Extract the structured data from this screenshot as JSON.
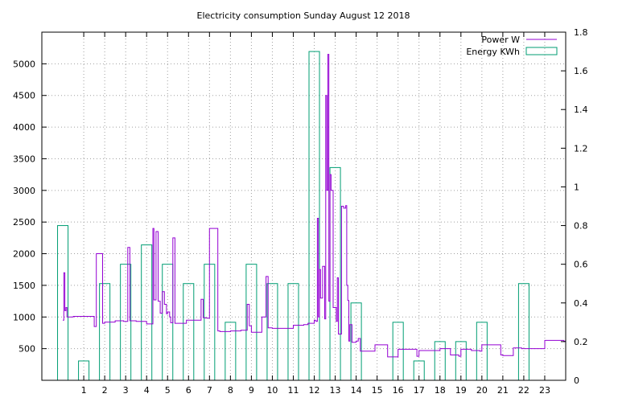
{
  "chart_data": {
    "type": "bar",
    "title": "Electricity consumption Sunday August 12 2018",
    "xlabel": "",
    "ylabel": "",
    "y2label": "",
    "xlim": [
      -1,
      24
    ],
    "x_ticks": [
      1,
      2,
      3,
      4,
      5,
      6,
      7,
      8,
      9,
      10,
      11,
      12,
      13,
      14,
      15,
      16,
      17,
      18,
      19,
      20,
      21,
      22,
      23
    ],
    "ylim": [
      0,
      5500
    ],
    "y_ticks": [
      500,
      1000,
      1500,
      2000,
      2500,
      3000,
      3500,
      4000,
      4500,
      5000
    ],
    "y2lim": [
      0,
      1.8
    ],
    "y2_ticks": [
      "0",
      "0.2",
      "0.4",
      "0.6",
      "0.8",
      "1",
      "1.2",
      "1.4",
      "1.6",
      "1.8"
    ],
    "grid": true,
    "legend_position": "top-right",
    "colors": {
      "power": "#9400d3",
      "energy": "#009e73"
    },
    "series": [
      {
        "name": "Power W",
        "type": "line",
        "axis": "left",
        "x": [
          0,
          0.05,
          0.1,
          0.15,
          0.2,
          0.3,
          0.4,
          0.5,
          1.0,
          1.4,
          1.5,
          1.6,
          1.9,
          2.0,
          2.5,
          2.9,
          3.1,
          3.2,
          3.5,
          4.0,
          4.3,
          4.35,
          4.45,
          4.55,
          4.65,
          4.75,
          4.85,
          4.95,
          5.0,
          5.1,
          5.15,
          5.25,
          5.35,
          5.5,
          5.9,
          6.0,
          6.5,
          6.6,
          6.7,
          6.8,
          6.9,
          7.0,
          7.4,
          7.5,
          8.0,
          8.5,
          8.8,
          8.9,
          9.0,
          9.2,
          9.5,
          9.7,
          9.8,
          10.0,
          10.5,
          10.7,
          11.0,
          11.5,
          11.7,
          12.0,
          12.05,
          12.1,
          12.15,
          12.2,
          12.25,
          12.3,
          12.4,
          12.5,
          12.55,
          12.6,
          12.65,
          12.7,
          12.75,
          12.8,
          12.9,
          13.0,
          13.05,
          13.1,
          13.15,
          13.2,
          13.3,
          13.4,
          13.5,
          13.55,
          13.6,
          13.65,
          13.7,
          13.8,
          14.0,
          14.1,
          14.2,
          14.5,
          14.9,
          15.0,
          15.5,
          15.9,
          16.0,
          16.5,
          16.9,
          17.0,
          17.5,
          17.9,
          18.0,
          18.5,
          18.9,
          19.0,
          19.5,
          19.9,
          20.0,
          20.5,
          20.9,
          21.0,
          21.5,
          21.9,
          22.0,
          22.5,
          22.9,
          23.0,
          23.5,
          23.9
        ],
        "values": [
          950,
          1700,
          1100,
          1150,
          1000,
          1000,
          1000,
          1010,
          1010,
          1010,
          850,
          2000,
          900,
          920,
          940,
          930,
          2100,
          940,
          930,
          890,
          2400,
          1270,
          2350,
          1250,
          1060,
          1400,
          1200,
          1050,
          1080,
          1000,
          910,
          2250,
          900,
          900,
          950,
          950,
          950,
          1280,
          990,
          985,
          980,
          2400,
          780,
          770,
          780,
          790,
          1200,
          860,
          760,
          760,
          1000,
          1640,
          830,
          820,
          820,
          820,
          870,
          880,
          900,
          950,
          940,
          930,
          2560,
          1000,
          1750,
          1300,
          1800,
          970,
          4500,
          3000,
          5150,
          1250,
          3250,
          3000,
          1150,
          1150,
          930,
          1620,
          730,
          730,
          2750,
          2720,
          2760,
          1500,
          1260,
          620,
          880,
          600,
          620,
          660,
          460,
          460,
          560,
          560,
          370,
          370,
          490,
          490,
          380,
          470,
          470,
          470,
          500,
          400,
          380,
          490,
          470,
          460,
          560,
          560,
          400,
          390,
          510,
          500,
          500,
          500,
          500,
          630,
          630,
          620
        ]
      },
      {
        "name": "Energy KWh",
        "type": "bar",
        "axis": "right",
        "x": [
          0,
          1,
          2,
          3,
          4,
          5,
          6,
          7,
          8,
          9,
          10,
          11,
          12,
          13,
          14,
          15,
          16,
          17,
          18,
          19,
          20,
          21,
          22,
          23
        ],
        "values": [
          0.8,
          0.1,
          0.5,
          0.6,
          0.7,
          0.6,
          0.5,
          0.6,
          0.3,
          0.6,
          0.5,
          0.5,
          1.7,
          1.1,
          0.4,
          0,
          0.3,
          0.1,
          0.2,
          0.2,
          0.3,
          0,
          0.5,
          0
        ]
      }
    ]
  }
}
